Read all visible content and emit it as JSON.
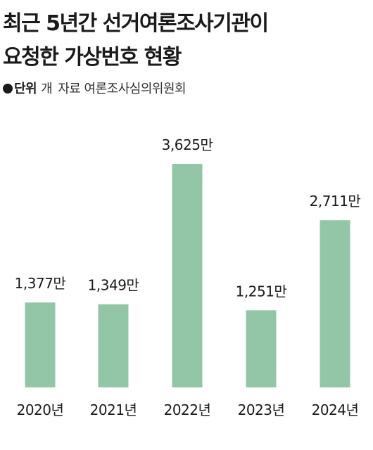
{
  "header": {
    "title_line1": "최근 5년간 선거여론조사기관이",
    "title_line2": "요청한 가상번호 현황",
    "unit_label": "단위",
    "unit": "개",
    "source": "자료 여론조사심의위원회"
  },
  "colors": {
    "bar": "#93c6a7",
    "text": "#1a1a1a"
  },
  "chart_data": {
    "type": "bar",
    "title": "최근 5년간 선거여론조사기관이 요청한 가상번호 현황",
    "categories": [
      "2020년",
      "2021년",
      "2022년",
      "2023년",
      "2024년"
    ],
    "values": [
      13770000,
      13490000,
      36250000,
      12510000,
      27110000
    ],
    "data_labels": [
      "1,377만",
      "1,349만",
      "3,625만",
      "1,251만",
      "2,711만"
    ],
    "xlabel": "",
    "ylabel": "",
    "ylim": [
      0,
      36250000
    ],
    "grid": false,
    "legend": "none"
  }
}
